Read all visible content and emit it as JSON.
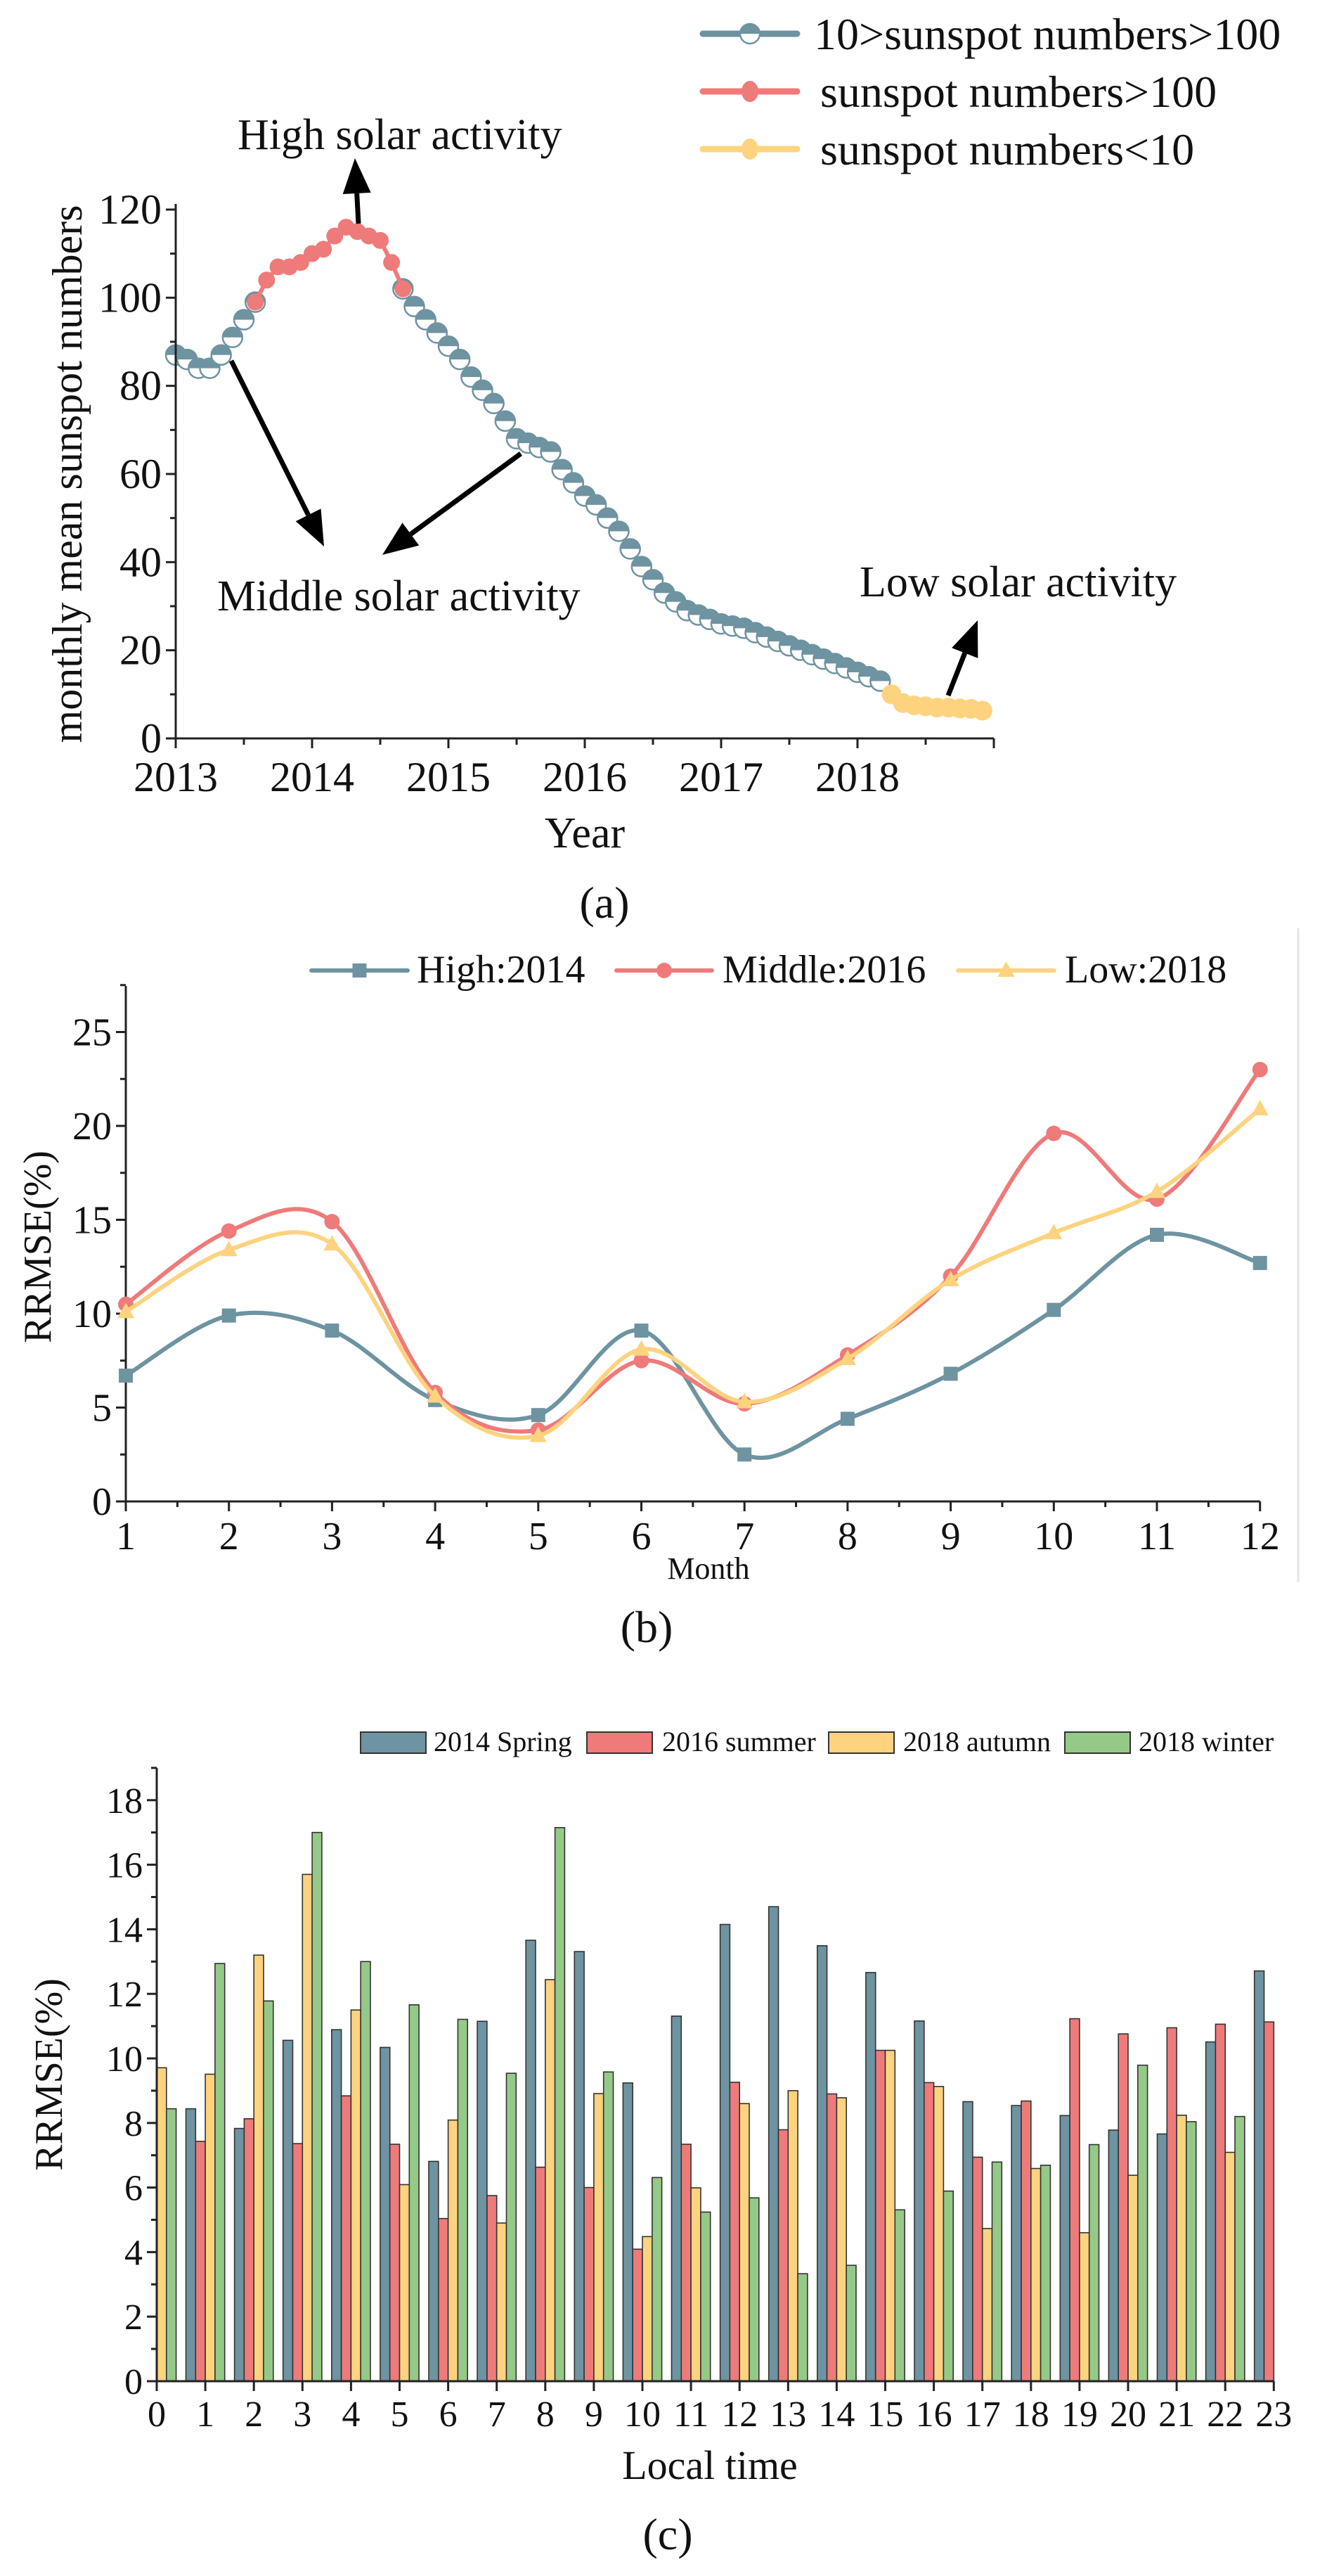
{
  "colors": {
    "teal": "#6e93a1",
    "red": "#ef7a7a",
    "yellow": "#fdd37f",
    "green": "#95c987",
    "axis": "#222222"
  },
  "chart_data": [
    {
      "panel": "(a)",
      "type": "line",
      "xlabel": "Year",
      "ylabel": "monthly mean sunspot numbers",
      "xlim": [
        2013,
        2019
      ],
      "ylim": [
        0,
        120
      ],
      "x_ticks": [
        "2013",
        "2014",
        "2015",
        "2016",
        "2017",
        "2018"
      ],
      "y_ticks": [
        "0",
        "20",
        "40",
        "60",
        "80",
        "100",
        "120"
      ],
      "x_start": 2013,
      "x_step_months": 1,
      "legend_position": "top-right",
      "legend": [
        "10>sunspot numbers>100",
        "sunspot numbers>100",
        "sunspot numbers<10"
      ],
      "series": [
        {
          "name": "10>sunspot numbers>100",
          "color": "teal",
          "start_index": 0,
          "values": [
            87,
            86,
            84,
            84,
            87,
            91,
            95,
            99
          ]
        },
        {
          "name": "10>sunspot numbers>100",
          "color": "teal",
          "start_index": 20,
          "values": [
            102,
            98,
            95,
            92,
            89,
            86,
            82,
            79,
            76,
            72,
            68,
            67,
            66,
            65,
            61,
            58,
            55,
            53,
            50,
            47,
            43,
            39,
            36,
            33,
            31,
            29,
            28,
            27,
            26,
            25.5,
            25,
            24,
            23,
            22,
            21,
            20,
            19,
            18,
            17,
            16,
            15,
            14,
            13
          ]
        },
        {
          "name": "sunspot numbers>100",
          "color": "red",
          "start_index": 7,
          "values": [
            99,
            104,
            107,
            107,
            108,
            110,
            111,
            114,
            116,
            115,
            114,
            113,
            108,
            102
          ]
        },
        {
          "name": "sunspot numbers<10",
          "color": "yellow",
          "start_index": 63,
          "values": [
            10,
            8,
            7.5,
            7.3,
            7,
            7,
            6.8,
            6.7,
            6.3
          ]
        }
      ],
      "annotations": [
        "High solar activity",
        "Middle solar activity",
        "Low solar activity"
      ]
    },
    {
      "panel": "(b)",
      "type": "line",
      "xlabel": "Month",
      "ylabel": "RRMSE(%)",
      "xlim": [
        1,
        12
      ],
      "ylim": [
        0,
        27
      ],
      "x": [
        1,
        2,
        3,
        4,
        5,
        6,
        7,
        8,
        9,
        10,
        11,
        12
      ],
      "x_ticks": [
        "1",
        "2",
        "3",
        "4",
        "5",
        "6",
        "7",
        "8",
        "9",
        "10",
        "11",
        "12"
      ],
      "y_ticks": [
        "0",
        "5",
        "10",
        "15",
        "20",
        "25"
      ],
      "legend_position": "top",
      "series": [
        {
          "name": "High:2014",
          "color": "teal",
          "marker": "square",
          "values": [
            6.7,
            9.9,
            9.1,
            5.4,
            4.6,
            9.1,
            2.5,
            4.4,
            6.8,
            10.2,
            14.2,
            12.7
          ]
        },
        {
          "name": "Middle:2016",
          "color": "red",
          "marker": "circle",
          "values": [
            10.5,
            14.4,
            14.9,
            5.8,
            3.8,
            7.5,
            5.2,
            7.8,
            12.0,
            19.6,
            16.1,
            23.0
          ]
        },
        {
          "name": "Low:2018",
          "color": "yellow",
          "marker": "triangle",
          "values": [
            10.1,
            13.4,
            13.7,
            5.6,
            3.5,
            8.1,
            5.3,
            7.6,
            11.8,
            14.3,
            16.5,
            20.9
          ]
        }
      ]
    },
    {
      "panel": "(c)",
      "type": "bar",
      "xlabel": "Local time",
      "ylabel": "RRMSE(%)",
      "ylim": [
        0,
        19
      ],
      "categories": [
        "0",
        "1",
        "2",
        "3",
        "4",
        "5",
        "6",
        "7",
        "8",
        "9",
        "10",
        "11",
        "12",
        "13",
        "14",
        "15",
        "16",
        "17",
        "18",
        "19",
        "20",
        "21",
        "22",
        "23"
      ],
      "y_ticks": [
        "0",
        "2",
        "4",
        "6",
        "8",
        "10",
        "12",
        "14",
        "16",
        "18"
      ],
      "legend_position": "top",
      "series": [
        {
          "name": "2014 Spring",
          "color": "teal",
          "values": [
            null,
            8.44,
            7.83,
            10.56,
            10.89,
            10.34,
            6.81,
            11.15,
            13.66,
            13.31,
            9.24,
            11.31,
            14.15,
            14.7,
            13.49,
            12.66,
            11.16,
            8.66,
            8.54,
            8.23,
            7.78,
            7.66,
            10.51,
            12.71
          ]
        },
        {
          "name": "2016 summer",
          "color": "red",
          "values": [
            null,
            7.43,
            8.13,
            7.36,
            8.84,
            7.34,
            5.04,
            5.75,
            6.63,
            6.0,
            4.09,
            7.34,
            9.26,
            7.79,
            8.9,
            10.25,
            9.25,
            6.94,
            8.68,
            11.23,
            10.76,
            10.95,
            11.06,
            11.13
          ]
        },
        {
          "name": "2018 autumn",
          "color": "yellow",
          "values": [
            9.71,
            9.51,
            13.2,
            15.7,
            11.5,
            6.09,
            8.09,
            4.9,
            12.44,
            8.91,
            4.48,
            5.99,
            8.6,
            9.0,
            8.78,
            10.25,
            9.13,
            4.73,
            6.59,
            4.6,
            6.38,
            8.24,
            7.09,
            null
          ]
        },
        {
          "name": "2018 winter",
          "color": "green",
          "values": [
            8.44,
            12.94,
            11.78,
            17.0,
            13.0,
            11.66,
            11.21,
            9.54,
            17.15,
            9.58,
            6.31,
            5.24,
            5.68,
            3.33,
            3.59,
            5.31,
            5.89,
            6.79,
            6.69,
            7.33,
            9.79,
            8.04,
            8.2,
            null
          ]
        }
      ]
    }
  ]
}
